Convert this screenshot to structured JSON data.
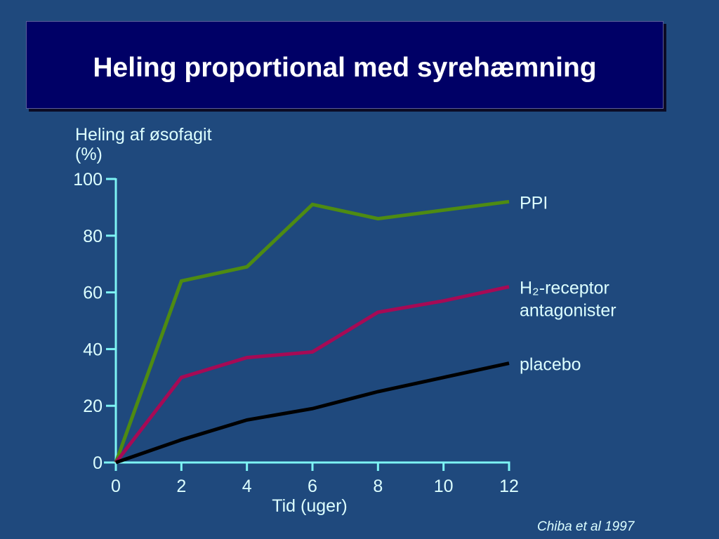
{
  "slide": {
    "title": "Heling proportional med syrehæmning",
    "citation": "Chiba et al 1997"
  },
  "colors": {
    "background": "#1f497d",
    "title_box": "#000066",
    "title_text": "#ffffff",
    "axis": "#7df4f4",
    "text": "#ddffff"
  },
  "chart_data": {
    "type": "line",
    "xlabel": "Tid (uger)",
    "ylabel": "Heling af øsofagit (%)",
    "xlim": [
      0,
      12
    ],
    "ylim": [
      0,
      100
    ],
    "xticks": [
      0,
      2,
      4,
      6,
      8,
      10,
      12
    ],
    "yticks": [
      0,
      20,
      40,
      60,
      80,
      100
    ],
    "grid": false,
    "legend": "right",
    "x": [
      0,
      2,
      4,
      6,
      8,
      10,
      12
    ],
    "series": [
      {
        "name": "PPI",
        "color": "#4e8b12",
        "values": [
          0,
          64,
          69,
          91,
          86,
          89,
          92
        ]
      },
      {
        "name": "H₂-receptor antagonister",
        "color": "#a60a55",
        "values": [
          0,
          30,
          37,
          39,
          53,
          57,
          62
        ]
      },
      {
        "name": "placebo",
        "color": "#000000",
        "values": [
          0,
          8,
          15,
          19,
          25,
          30,
          35
        ]
      }
    ]
  }
}
